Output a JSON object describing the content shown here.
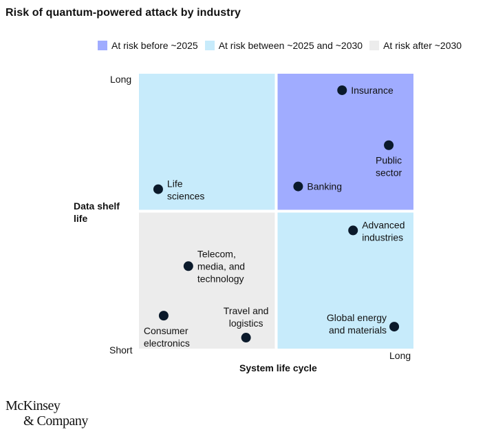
{
  "title": "Risk of quantum-powered attack by industry",
  "legend": [
    {
      "label": "At risk before ~2025",
      "color": "#a0acff"
    },
    {
      "label": "At risk between ~2025 and ~2030",
      "color": "#c7ebfb"
    },
    {
      "label": "At risk after ~2030",
      "color": "#ececec"
    }
  ],
  "chart_data": {
    "type": "scatter",
    "title": "Risk of quantum-powered attack by industry",
    "xlabel": "System life cycle",
    "ylabel": "Data shelf life",
    "x_ticks": {
      "low": "",
      "high": "Long"
    },
    "y_ticks": {
      "low": "Short",
      "high": "Long"
    },
    "xlim": [
      0,
      1
    ],
    "ylim": [
      0,
      1
    ],
    "quadrants": [
      {
        "position": "top-left",
        "category": "At risk between ~2025 and ~2030",
        "color": "#c7ebfb"
      },
      {
        "position": "top-right",
        "category": "At risk before ~2025",
        "color": "#a0acff"
      },
      {
        "position": "bottom-left",
        "category": "At risk after ~2030",
        "color": "#ececec"
      },
      {
        "position": "bottom-right",
        "category": "At risk between ~2025 and ~2030",
        "color": "#c7ebfb"
      }
    ],
    "points": [
      {
        "label": [
          "Insurance"
        ],
        "x": 0.74,
        "y": 0.94,
        "label_side": "right"
      },
      {
        "label": [
          "Public",
          "sector"
        ],
        "x": 0.91,
        "y": 0.74,
        "label_side": "below"
      },
      {
        "label": [
          "Banking"
        ],
        "x": 0.58,
        "y": 0.59,
        "label_side": "right"
      },
      {
        "label": [
          "Life",
          "sciences"
        ],
        "x": 0.07,
        "y": 0.58,
        "label_side": "right"
      },
      {
        "label": [
          "Advanced",
          "industries"
        ],
        "x": 0.78,
        "y": 0.43,
        "label_side": "right"
      },
      {
        "label": [
          "Telecom,",
          "media, and",
          "technology"
        ],
        "x": 0.18,
        "y": 0.3,
        "label_side": "right"
      },
      {
        "label": [
          "Consumer",
          "electronics"
        ],
        "x": 0.09,
        "y": 0.12,
        "label_side": "below"
      },
      {
        "label": [
          "Travel and",
          "logistics"
        ],
        "x": 0.39,
        "y": 0.04,
        "label_side": "above"
      },
      {
        "label": [
          "Global energy",
          "and materials"
        ],
        "x": 0.93,
        "y": 0.08,
        "label_side": "left"
      }
    ]
  },
  "footer": {
    "logo_line1": "McKinsey",
    "logo_line2": "& Company"
  }
}
